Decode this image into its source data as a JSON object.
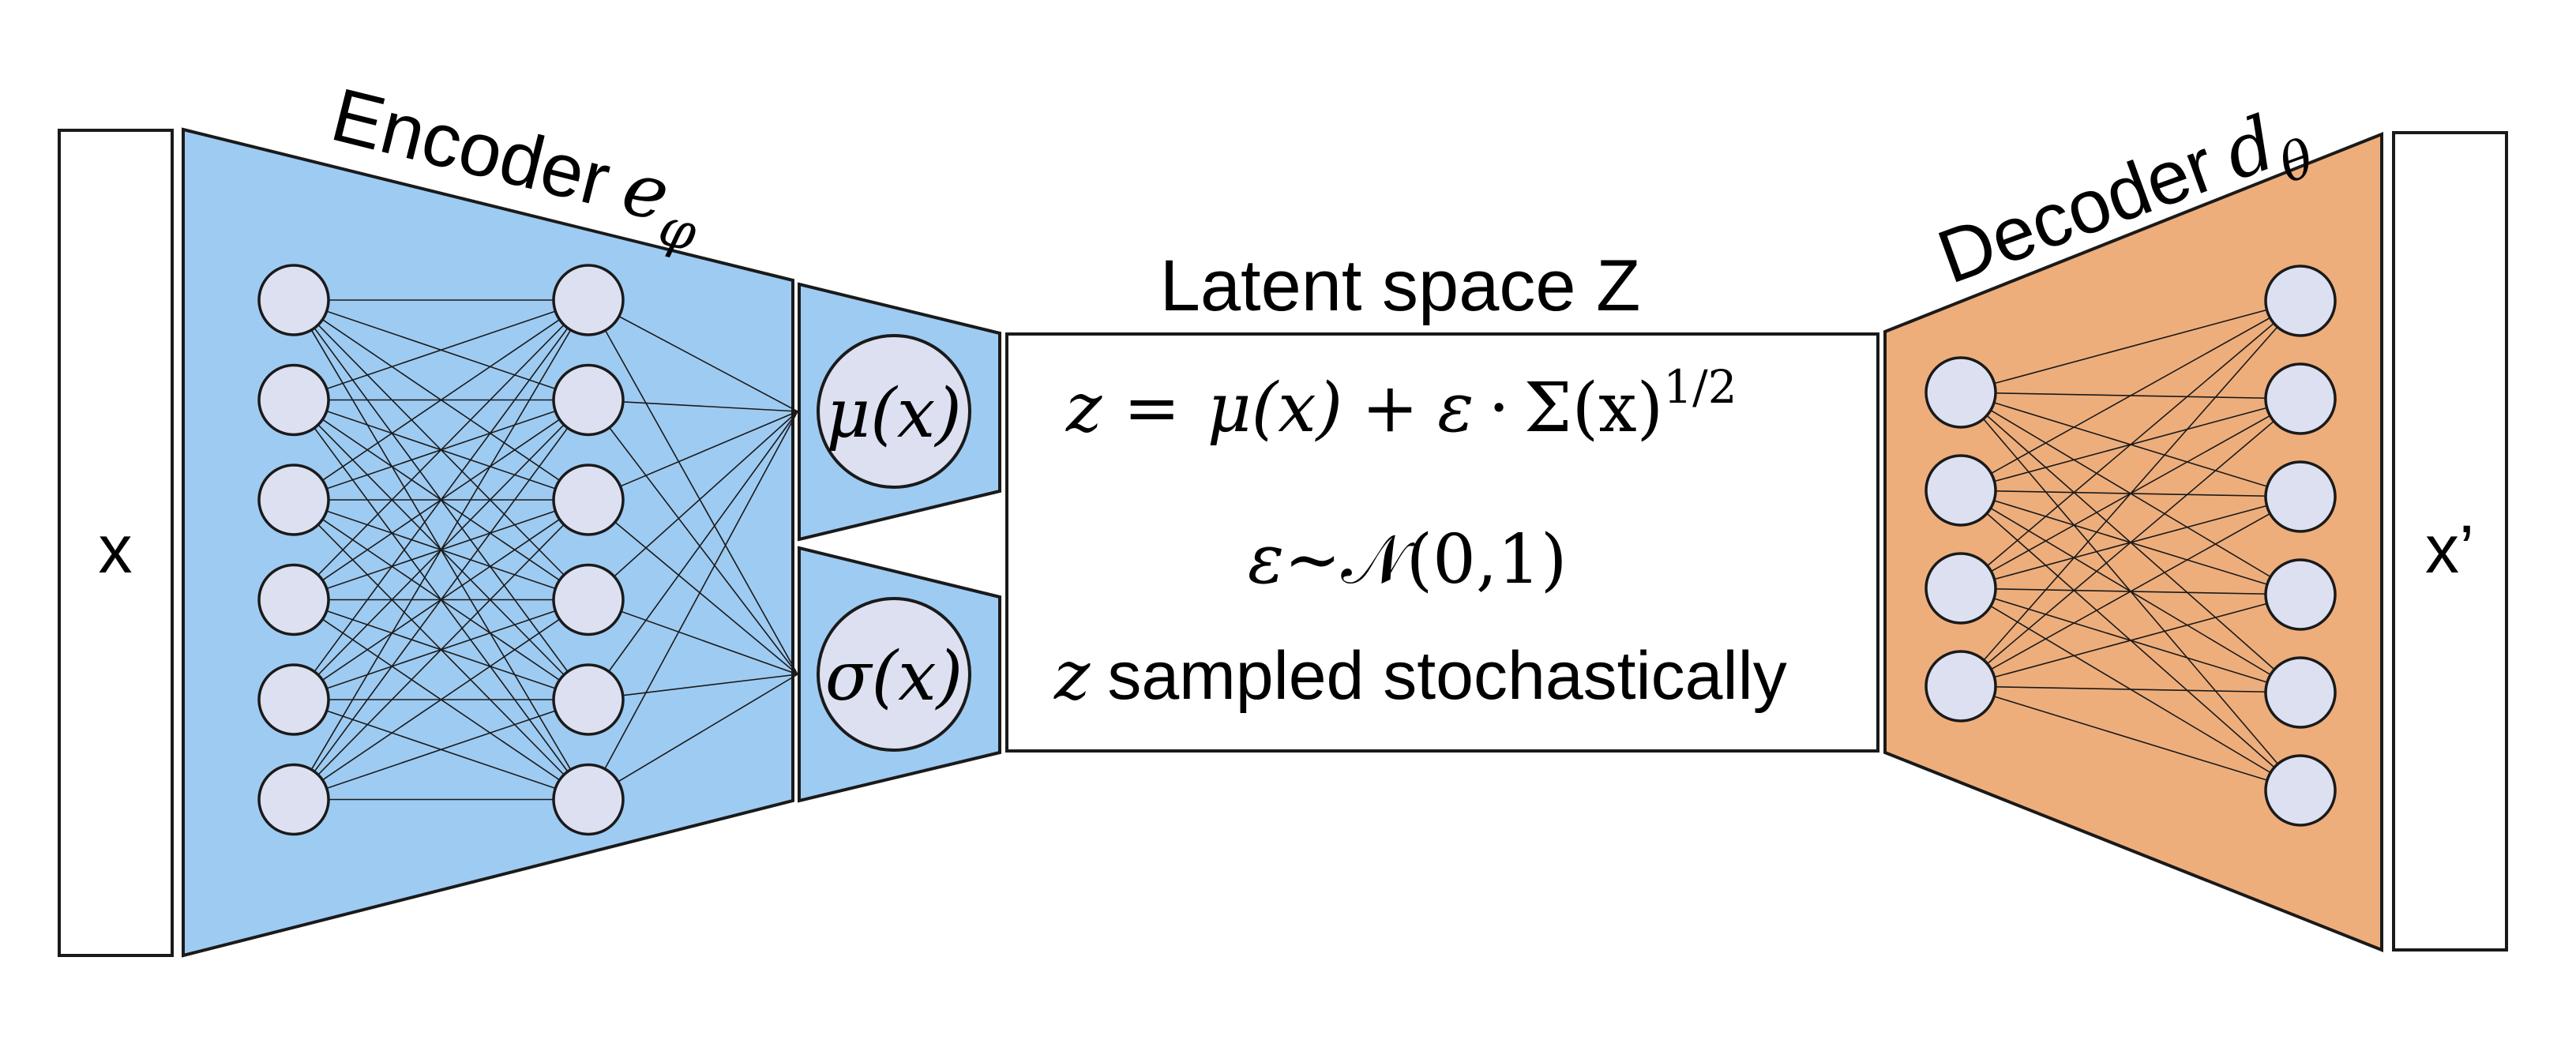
{
  "input_label": "x",
  "output_label": "x’",
  "encoder": {
    "title_word": "Encoder",
    "title_symbol": "e",
    "title_subscript": "φ",
    "color": "#9ECBF2",
    "input_layer_nodes": 6,
    "hidden_layer_nodes": 6
  },
  "mu_label": "μ(x)",
  "sigma_label": "σ(x)",
  "latent": {
    "title": "Latent space Z",
    "eq_z": "z =",
    "eq_mu": "μ(x)",
    "eq_plus": "+",
    "eq_eps": "ε",
    "eq_dot": "·",
    "eq_sigma": "Σ(x)",
    "eq_exp": "1/2",
    "noise_eps": "ε",
    "noise_dist": "~𝒩(0,1)",
    "sample_var": "z",
    "sample_text": "sampled stochastically"
  },
  "decoder": {
    "title_word": "Decoder",
    "title_symbol": "d",
    "title_subscript": "θ",
    "color": "#EEAE7C",
    "input_layer_nodes": 4,
    "output_layer_nodes": 6
  },
  "colors": {
    "node_fill": "#DCE0F0",
    "stroke": "#1A1A1A"
  }
}
